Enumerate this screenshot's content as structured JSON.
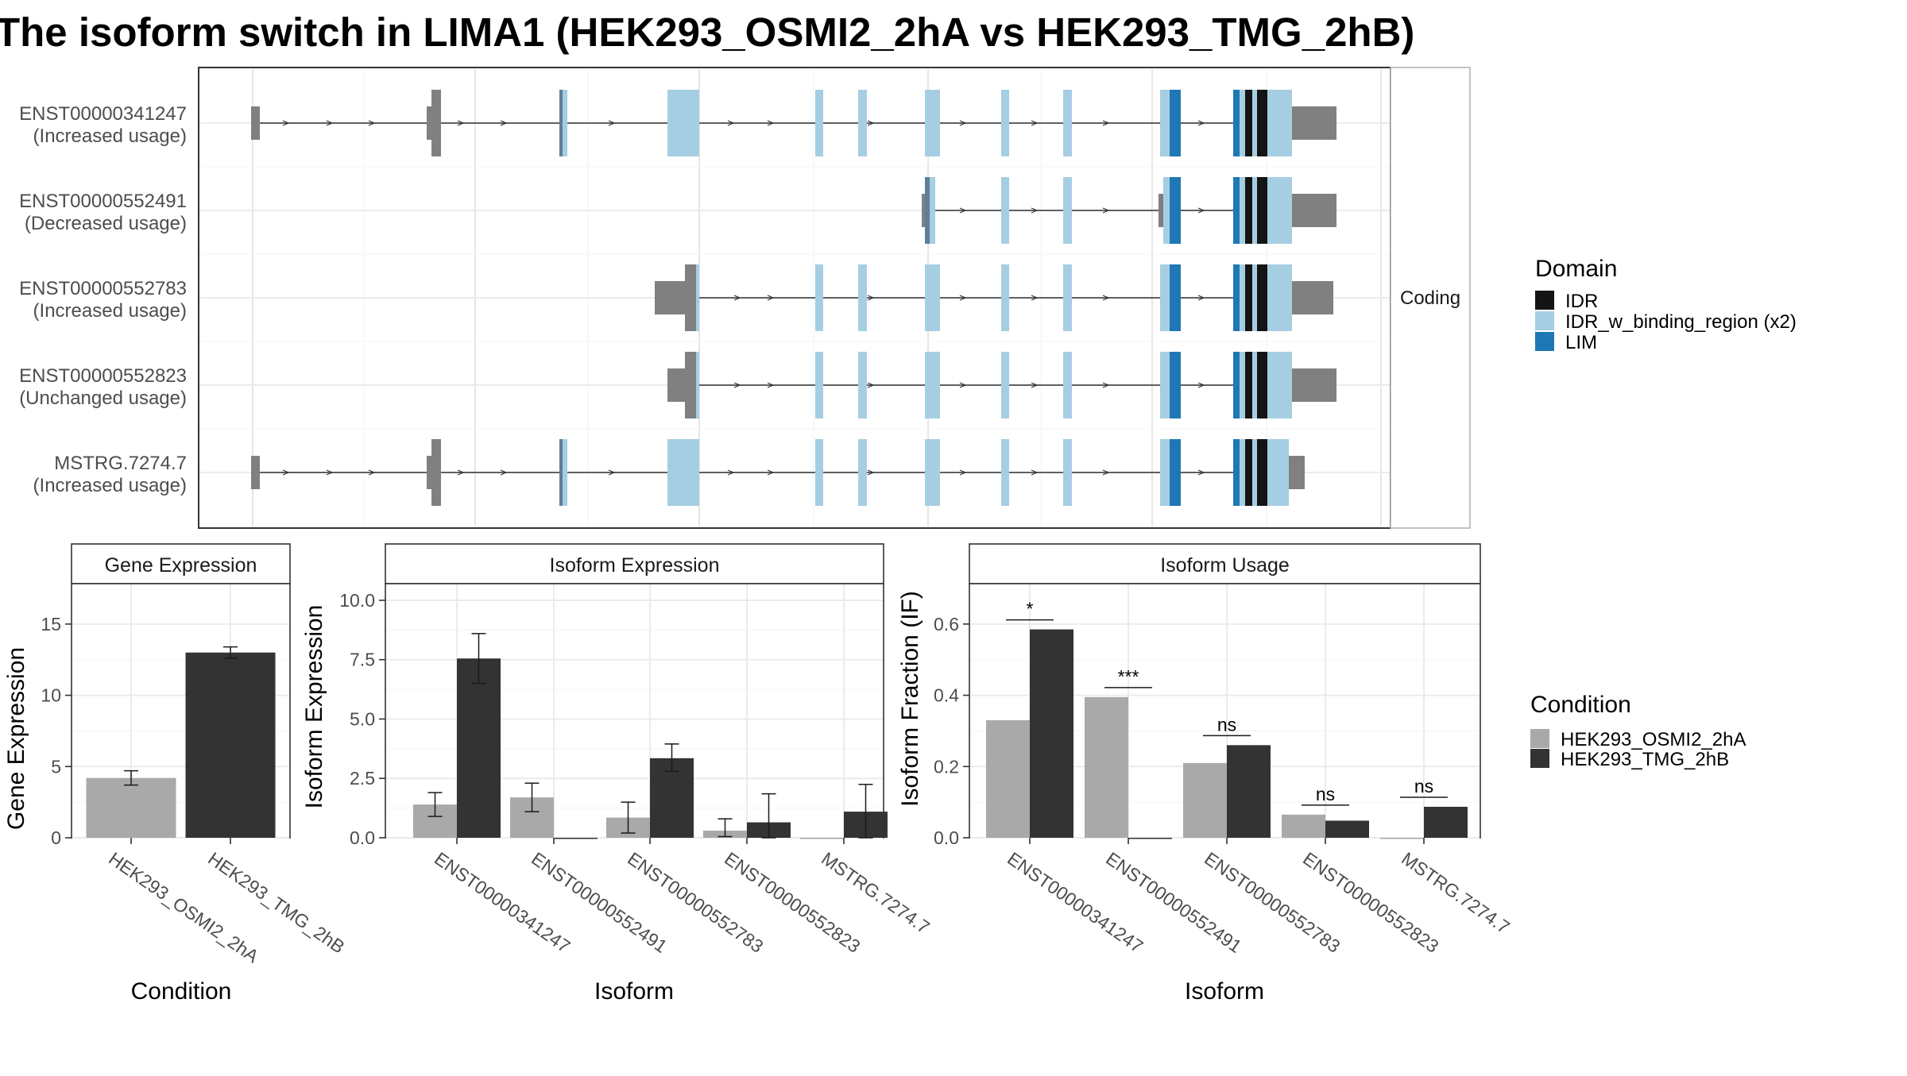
{
  "title": "The isoform switch in LIMA1 (HEK293_OSMI2_2hA vs HEK293_TMG_2hB)",
  "colors": {
    "IDR": "#141414",
    "IDR_w_binding_region": "#a6cee3",
    "LIM": "#1f78b4",
    "utr": "#808080",
    "cond1": "#a9a9a9",
    "cond2": "#333333"
  },
  "structure": {
    "facet_label": "Coding",
    "transcripts": [
      {
        "id": "ENST00000341247",
        "usage": "(Increased usage)"
      },
      {
        "id": "ENST00000552491",
        "usage": "(Decreased usage)"
      },
      {
        "id": "ENST00000552783",
        "usage": "(Increased usage)"
      },
      {
        "id": "ENST00000552823",
        "usage": "(Unchanged usage)"
      },
      {
        "id": "MSTRG.7274.7",
        "usage": "(Increased usage)"
      }
    ]
  },
  "legend_domain": {
    "title": "Domain",
    "items": [
      {
        "label": "IDR",
        "color": "#141414"
      },
      {
        "label": "IDR_w_binding_region (x2)",
        "color": "#a6cee3"
      },
      {
        "label": "LIM",
        "color": "#1f78b4"
      }
    ]
  },
  "legend_condition": {
    "title": "Condition",
    "items": [
      {
        "label": "HEK293_OSMI2_2hA",
        "color": "#a9a9a9"
      },
      {
        "label": "HEK293_TMG_2hB",
        "color": "#333333"
      }
    ]
  },
  "chart_data": [
    {
      "type": "bar",
      "panel": "Gene Expression",
      "categories": [
        "HEK293_OSMI2_2hA",
        "HEK293_TMG_2hB"
      ],
      "values": [
        4.2,
        13.0
      ],
      "error_low": [
        3.7,
        12.6
      ],
      "error_high": [
        4.7,
        13.4
      ],
      "xlabel": "Condition",
      "ylabel": "Gene Expression",
      "ylim": [
        0,
        17.5
      ],
      "yticks": [
        0,
        5,
        10,
        15
      ],
      "ytick_labels": [
        "0",
        "5",
        "10",
        "15"
      ]
    },
    {
      "type": "bar",
      "panel": "Isoform Expression",
      "categories": [
        "ENST00000341247",
        "ENST00000552491",
        "ENST00000552783",
        "ENST00000552823",
        "MSTRG.7274.7"
      ],
      "series": [
        {
          "name": "HEK293_OSMI2_2hA",
          "values": [
            1.4,
            1.7,
            0.85,
            0.3,
            0.0
          ],
          "error_low": [
            0.9,
            1.1,
            0.2,
            0.05,
            0.0
          ],
          "error_high": [
            1.9,
            2.3,
            1.5,
            0.8,
            0.0
          ]
        },
        {
          "name": "HEK293_TMG_2hB",
          "values": [
            7.55,
            0.0,
            3.35,
            0.65,
            1.1
          ],
          "error_low": [
            6.5,
            0.0,
            2.8,
            0.0,
            0.0
          ],
          "error_high": [
            8.6,
            0.0,
            3.95,
            1.85,
            2.25
          ]
        }
      ],
      "xlabel": "Isoform",
      "ylabel": "Isoform Expression",
      "ylim": [
        0,
        10.5
      ],
      "yticks": [
        0,
        2.5,
        5,
        7.5,
        10
      ],
      "ytick_labels": [
        "0.0",
        "2.5",
        "5.0",
        "7.5",
        "10.0"
      ]
    },
    {
      "type": "bar",
      "panel": "Isoform Usage",
      "categories": [
        "ENST00000341247",
        "ENST00000552491",
        "ENST00000552783",
        "ENST00000552823",
        "MSTRG.7274.7"
      ],
      "series": [
        {
          "name": "HEK293_OSMI2_2hA",
          "values": [
            0.33,
            0.395,
            0.21,
            0.065,
            0.0
          ]
        },
        {
          "name": "HEK293_TMG_2hB",
          "values": [
            0.585,
            0.0,
            0.26,
            0.048,
            0.087
          ]
        }
      ],
      "significance": [
        "*",
        "***",
        "ns",
        "ns",
        "ns"
      ],
      "xlabel": "Isoform",
      "ylabel": "Isoform Fraction (IF)",
      "ylim": [
        0,
        0.7
      ],
      "yticks": [
        0,
        0.2,
        0.4,
        0.6
      ],
      "ytick_labels": [
        "0.0",
        "0.2",
        "0.4",
        "0.6"
      ]
    }
  ]
}
